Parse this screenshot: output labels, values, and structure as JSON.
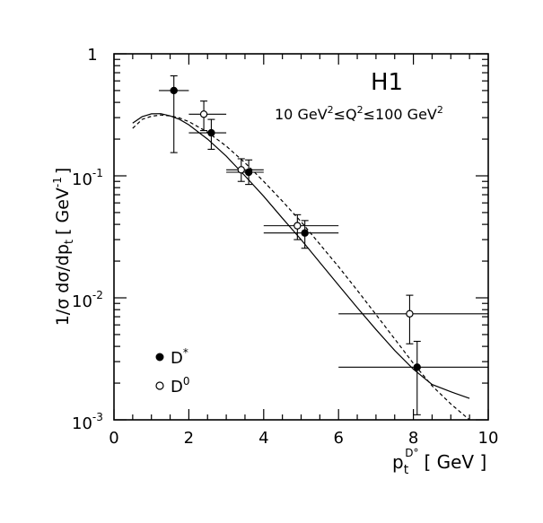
{
  "chart_data": {
    "type": "scatter",
    "experiment_label": "H1",
    "kinematic_range": {
      "q_lo": "10 GeV",
      "mid": "Q",
      "q_hi": "100 GeV",
      "sup": "2",
      "rel": "≤"
    },
    "xlabel": {
      "main": "p",
      "sub": "t",
      "sup": "D°",
      "unit": "[ GeV ]"
    },
    "ylabel": {
      "base": "1/σ dσ/dp",
      "sub": "t",
      "unit_open": "[ GeV",
      "unit_sup": "-1",
      "unit_close": "]"
    },
    "xlim": [
      0,
      10
    ],
    "ylim": [
      0.001,
      1
    ],
    "y_scale": "log",
    "x_ticks": [
      "0",
      "2",
      "4",
      "6",
      "8",
      "10"
    ],
    "y_ticks": [
      {
        "value": 1,
        "base": "1",
        "exp": ""
      },
      {
        "value": 0.1,
        "base": "10",
        "exp": "-1"
      },
      {
        "value": 0.01,
        "base": "10",
        "exp": "-2"
      },
      {
        "value": 0.001,
        "base": "10",
        "exp": "-3"
      }
    ],
    "legend": {
      "placement": "bottom-left",
      "entries": [
        {
          "marker": "filled-circle",
          "main": "D",
          "sup": "*"
        },
        {
          "marker": "open-circle",
          "main": "D",
          "sup": "0"
        }
      ]
    },
    "series": [
      {
        "marker": "filled-circle",
        "points": [
          {
            "x": 1.6,
            "y": 0.5,
            "xerr": [
              0.4,
              0.4
            ],
            "yerr": [
              0.155,
              0.66
            ]
          },
          {
            "x": 2.6,
            "y": 0.225,
            "xerr": [
              0.6,
              0.4
            ],
            "yerr": [
              0.165,
              0.29
            ]
          },
          {
            "x": 3.6,
            "y": 0.107,
            "xerr": [
              0.6,
              0.4
            ],
            "yerr": [
              0.085,
              0.135
            ]
          },
          {
            "x": 5.1,
            "y": 0.034,
            "xerr": [
              1.1,
              0.9
            ],
            "yerr": [
              0.0255,
              0.043
            ]
          },
          {
            "x": 8.1,
            "y": 0.0027,
            "xerr": [
              2.1,
              1.9
            ],
            "yerr": [
              0.0011,
              0.0044
            ]
          }
        ]
      },
      {
        "marker": "open-circle",
        "points": [
          {
            "x": 2.4,
            "y": 0.32,
            "xerr": [
              0.4,
              0.6
            ],
            "yerr": [
              0.235,
              0.41
            ]
          },
          {
            "x": 3.4,
            "y": 0.112,
            "xerr": [
              0.4,
              0.6
            ],
            "yerr": [
              0.09,
              0.138
            ]
          },
          {
            "x": 4.9,
            "y": 0.039,
            "xerr": [
              0.9,
              1.1
            ],
            "yerr": [
              0.03,
              0.048
            ]
          },
          {
            "x": 7.9,
            "y": 0.0074,
            "xerr": [
              1.9,
              2.1
            ],
            "yerr": [
              0.0042,
              0.0105
            ]
          }
        ]
      }
    ],
    "curves": [
      {
        "style": "solid",
        "points": [
          [
            0.5,
            0.27
          ],
          [
            0.75,
            0.305
          ],
          [
            1.0,
            0.322
          ],
          [
            1.25,
            0.323
          ],
          [
            1.5,
            0.31
          ],
          [
            1.75,
            0.29
          ],
          [
            2.0,
            0.262
          ],
          [
            2.5,
            0.2
          ],
          [
            3.0,
            0.145
          ],
          [
            3.5,
            0.1
          ],
          [
            4.0,
            0.068
          ],
          [
            4.5,
            0.045
          ],
          [
            5.0,
            0.03
          ],
          [
            5.5,
            0.0195
          ],
          [
            6.0,
            0.0127
          ],
          [
            6.5,
            0.0083
          ],
          [
            7.0,
            0.0055
          ],
          [
            7.5,
            0.0037
          ],
          [
            8.0,
            0.0026
          ],
          [
            8.5,
            0.00195
          ],
          [
            9.0,
            0.0017
          ],
          [
            9.5,
            0.0015
          ]
        ]
      },
      {
        "style": "dashed",
        "points": [
          [
            0.5,
            0.245
          ],
          [
            0.75,
            0.29
          ],
          [
            1.0,
            0.308
          ],
          [
            1.25,
            0.315
          ],
          [
            1.5,
            0.31
          ],
          [
            1.75,
            0.298
          ],
          [
            2.0,
            0.278
          ],
          [
            2.5,
            0.228
          ],
          [
            3.0,
            0.175
          ],
          [
            3.5,
            0.128
          ],
          [
            4.0,
            0.09
          ],
          [
            4.5,
            0.062
          ],
          [
            5.0,
            0.042
          ],
          [
            5.5,
            0.0275
          ],
          [
            6.0,
            0.018
          ],
          [
            6.5,
            0.0115
          ],
          [
            7.0,
            0.0073
          ],
          [
            7.5,
            0.0046
          ],
          [
            8.0,
            0.0029
          ],
          [
            8.5,
            0.0019
          ],
          [
            9.0,
            0.00135
          ],
          [
            9.5,
            0.001
          ]
        ]
      }
    ]
  }
}
